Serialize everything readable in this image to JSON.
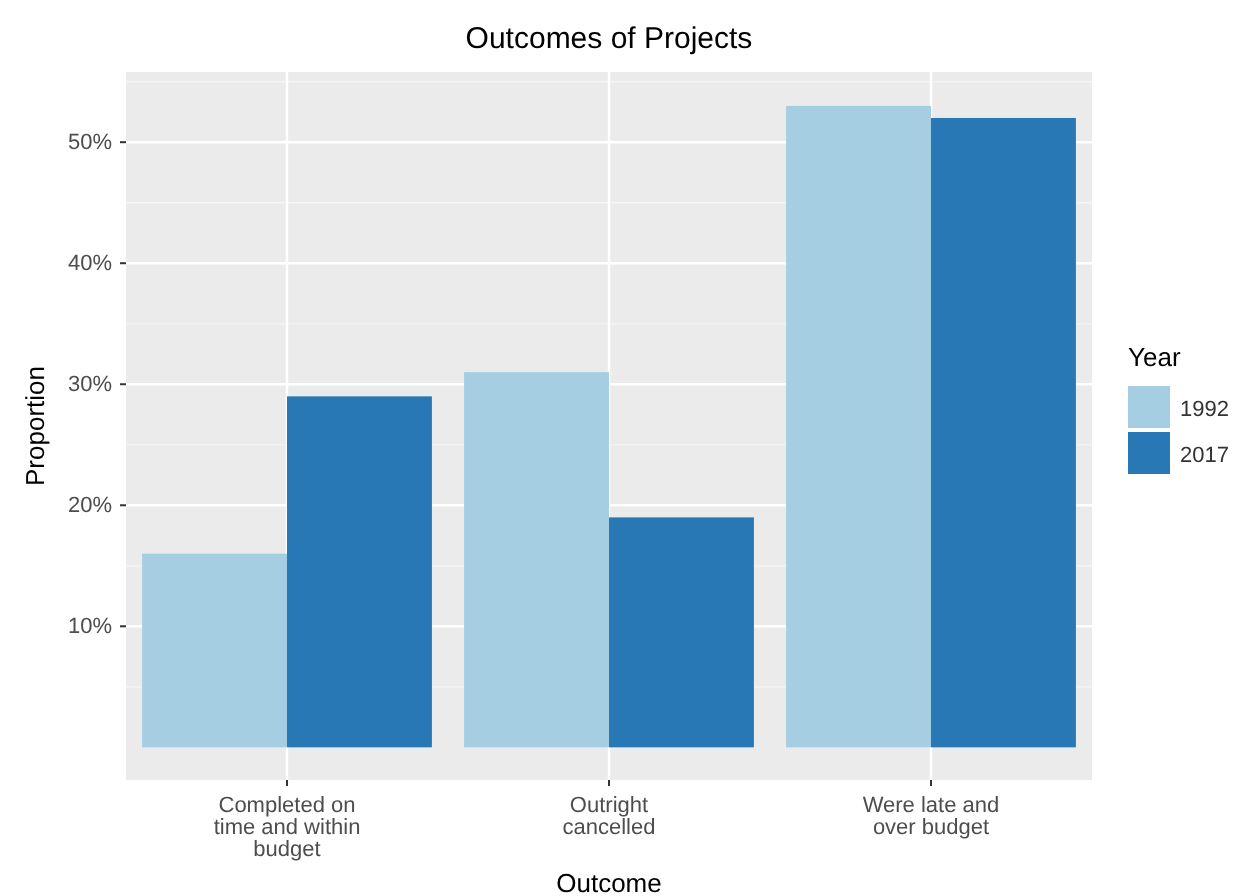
{
  "chart_data": {
    "type": "bar",
    "title": "Outcomes of Projects",
    "xlabel": "Outcome",
    "ylabel": "Proportion",
    "legend_title": "Year",
    "categories": [
      "Completed on\ntime and within\nbudget",
      "Outright\ncancelled",
      "Were late and\nover budget"
    ],
    "series": [
      {
        "name": "1992",
        "color": "#a6cee3",
        "values": [
          16,
          31,
          53
        ]
      },
      {
        "name": "2017",
        "color": "#2878b5",
        "values": [
          29,
          19,
          52
        ]
      }
    ],
    "ylim": [
      -2.7,
      55.8
    ],
    "yticks": [
      {
        "value": 10,
        "label": "10%"
      },
      {
        "value": 20,
        "label": "20%"
      },
      {
        "value": 30,
        "label": "30%"
      },
      {
        "value": 40,
        "label": "40%"
      },
      {
        "value": 50,
        "label": "50%"
      }
    ],
    "grid": true,
    "legend": "right"
  }
}
